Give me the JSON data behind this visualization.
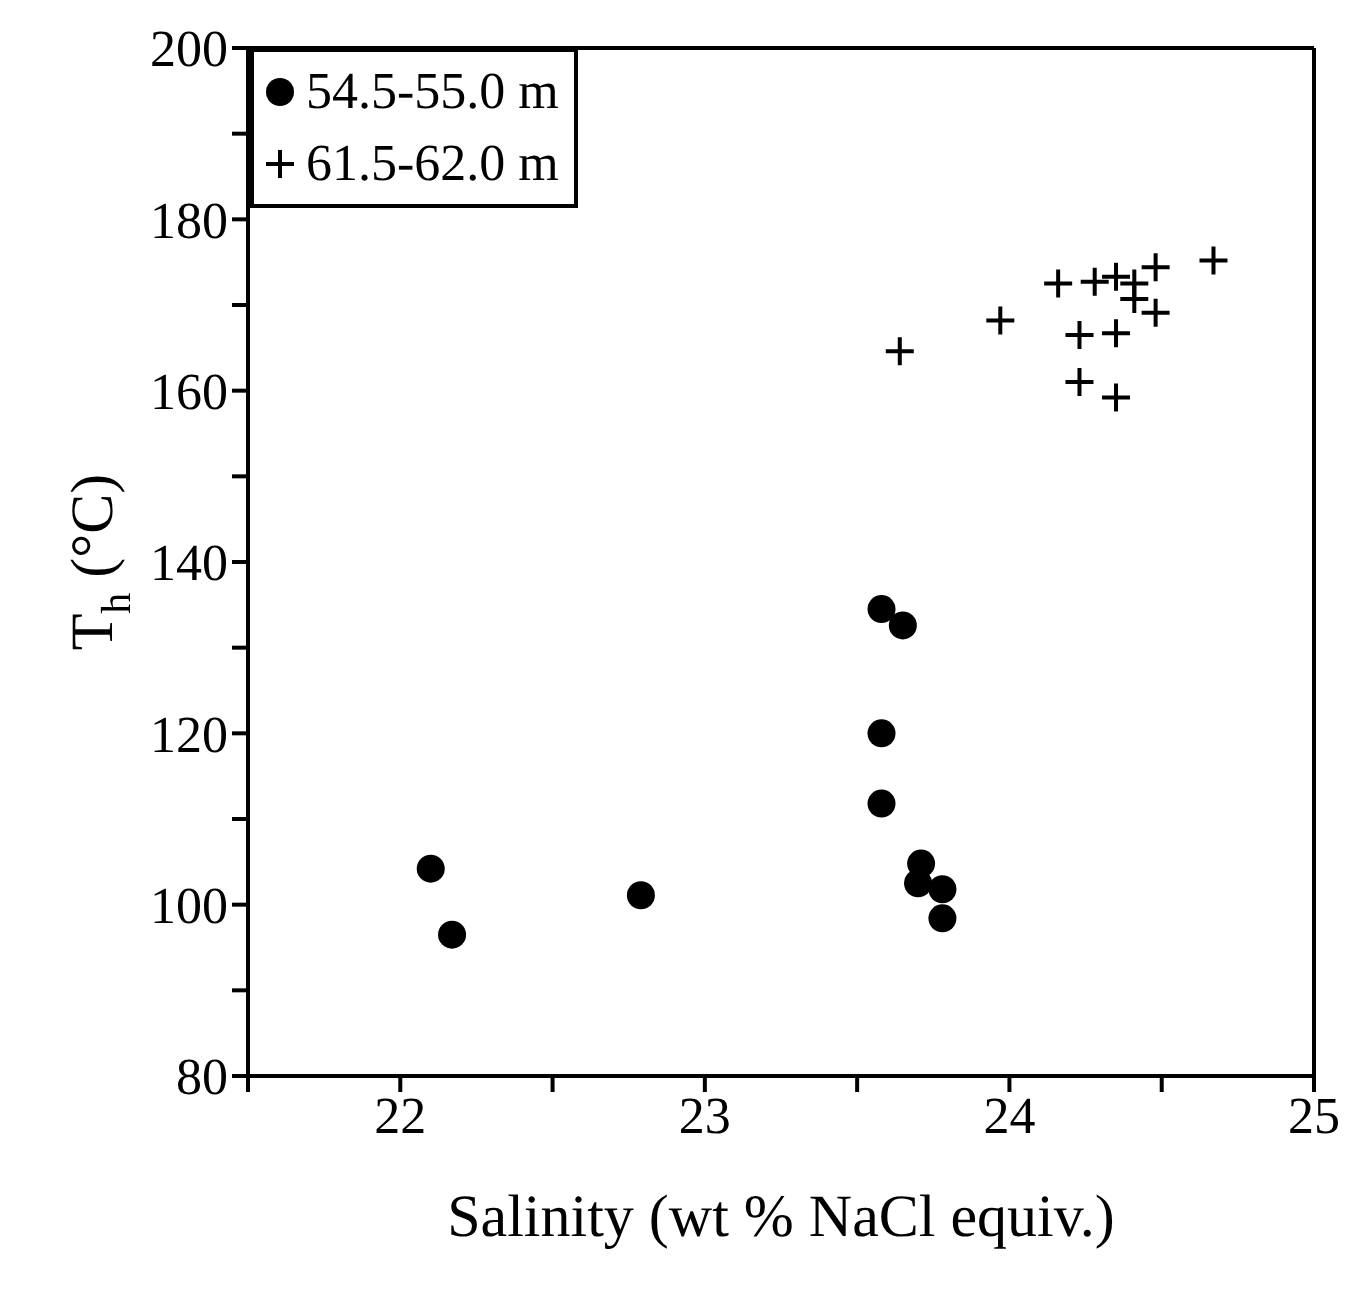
{
  "chart_data": {
    "type": "scatter",
    "xlabel": "Salinity (wt % NaCl equiv.)",
    "ylabel": "T$_{h}$ (°C)",
    "xlim": [
      21.5,
      25
    ],
    "xticks": [
      {
        "value": 21.5,
        "label": null
      },
      22,
      {
        "value": 22.5,
        "label": null
      },
      23,
      {
        "value": 23.5,
        "label": null
      },
      24,
      {
        "value": 24.5,
        "label": null
      },
      25
    ],
    "ylim": [
      80,
      200
    ],
    "yticks": [
      80,
      {
        "value": 90,
        "label": null
      },
      100,
      {
        "value": 110,
        "label": null
      },
      120,
      {
        "value": 130,
        "label": null
      },
      140,
      {
        "value": 150,
        "label": null
      },
      160,
      {
        "value": 170,
        "label": null
      },
      180,
      {
        "value": 190,
        "label": null
      },
      200
    ],
    "legend": "top left",
    "series": [
      {
        "name": "54.5-55.0 m",
        "color": "#000000",
        "marker": "circle",
        "x": [
          22.1,
          22.17,
          22.79,
          23.58,
          23.65,
          23.58,
          23.58,
          23.71,
          23.7,
          23.78,
          23.78
        ],
        "values": [
          104.2,
          96.5,
          101.1,
          134.5,
          132.6,
          120.0,
          111.8,
          104.8,
          102.5,
          101.8,
          98.4
        ]
      },
      {
        "name": "61.5-62.0 m",
        "color": "#000000",
        "marker": "cross",
        "x": [
          23.64,
          23.97,
          24.16,
          24.28,
          24.35,
          24.41,
          24.48,
          24.67,
          24.41,
          24.48,
          24.23,
          24.35,
          24.23,
          24.35
        ],
        "values": [
          164.6,
          168.2,
          172.5,
          172.7,
          173.3,
          172.5,
          174.4,
          175.2,
          170.7,
          169.1,
          166.5,
          166.7,
          161.0,
          159.2
        ]
      }
    ]
  }
}
